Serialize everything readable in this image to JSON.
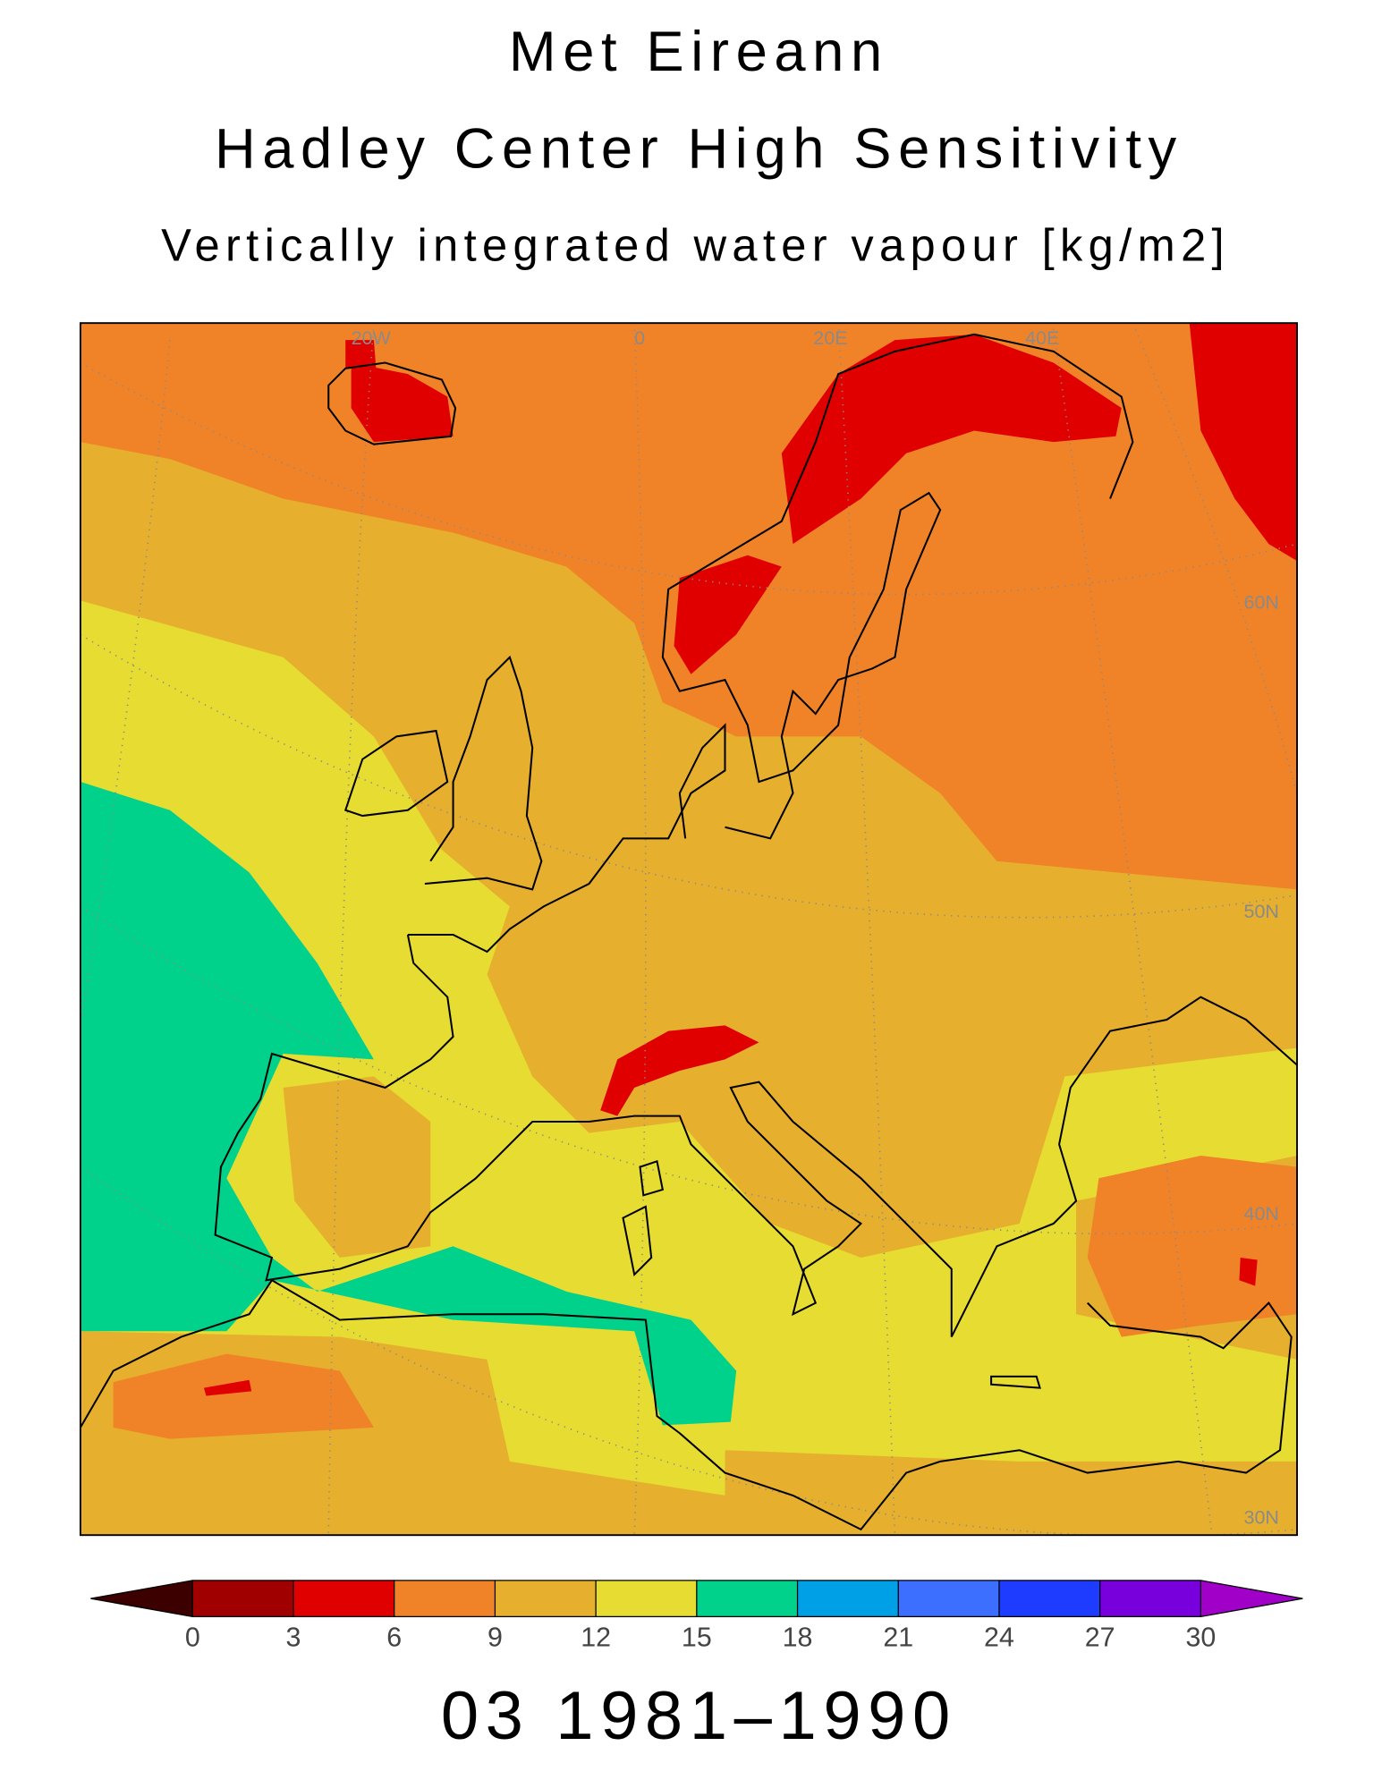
{
  "header": {
    "lines": [
      "Met Eireann",
      "Hadley Center High Sensitivity",
      "Vertically integrated water vapour [kg/m2]"
    ]
  },
  "map": {
    "graticule_labels": [
      "20W",
      "0",
      "20E",
      "40E",
      "60N",
      "50N",
      "40N",
      "30N"
    ],
    "colors": {
      "very_low": "#e00000",
      "low": "#f08228",
      "mid": "#e6af2d",
      "high": "#e6dc32",
      "very_high": "#00d28c"
    }
  },
  "colorbar": {
    "ticks": [
      0,
      3,
      6,
      9,
      12,
      15,
      18,
      21,
      24,
      27,
      30
    ],
    "colors": [
      "#a00000",
      "#e00000",
      "#f08228",
      "#e6af2d",
      "#e6dc32",
      "#00d28c",
      "#00a0e6",
      "#3c6eff",
      "#1e3cff",
      "#7800dc"
    ],
    "under_color": "#3c0000",
    "over_color": "#a000c8"
  },
  "footer": {
    "text": "03 1981–1990"
  }
}
